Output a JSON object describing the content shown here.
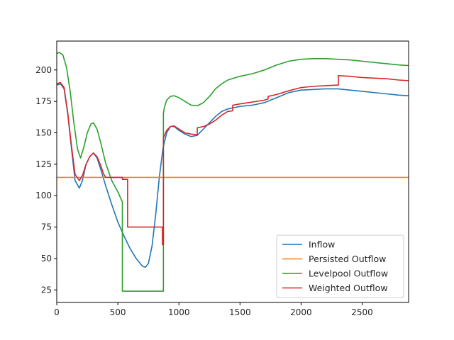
{
  "chart_data": {
    "type": "line",
    "title": "",
    "xlabel": "",
    "ylabel": "",
    "xlim": [
      0,
      2880
    ],
    "ylim": [
      15,
      223
    ],
    "xticks": [
      0,
      500,
      1000,
      1500,
      2000,
      2500
    ],
    "yticks": [
      25,
      50,
      75,
      100,
      125,
      150,
      175,
      200
    ],
    "grid": false,
    "legend_position": "lower-right",
    "series": [
      {
        "name": "Inflow",
        "color": "#1f77b4",
        "x": [
          0,
          30,
          60,
          90,
          120,
          150,
          185,
          210,
          240,
          270,
          300,
          330,
          360,
          400,
          450,
          500,
          550,
          600,
          650,
          700,
          725,
          750,
          780,
          810,
          840,
          870,
          900,
          930,
          960,
          1000,
          1050,
          1100,
          1150,
          1200,
          1250,
          1300,
          1350,
          1400,
          1500,
          1600,
          1700,
          1800,
          1900,
          2000,
          2100,
          2200,
          2300,
          2400,
          2500,
          2600,
          2700,
          2800,
          2880
        ],
        "y": [
          188,
          189,
          185,
          165,
          138,
          112,
          106,
          112,
          125,
          131,
          134,
          130,
          121,
          108,
          93,
          79,
          68,
          58,
          50,
          44,
          43,
          46,
          60,
          85,
          115,
          138,
          150,
          155,
          155,
          152,
          149,
          147,
          148,
          153,
          158,
          163,
          167,
          169,
          171,
          172,
          174,
          178,
          182,
          184,
          184.5,
          185,
          185,
          184,
          183,
          182,
          181,
          180,
          179.5
        ]
      },
      {
        "name": "Persisted Outflow",
        "color": "#ff7f0e",
        "x": [
          0,
          2880
        ],
        "y": [
          114.5,
          114.5
        ]
      },
      {
        "name": "Levelpool Outflow",
        "color": "#2ca02c",
        "x": [
          0,
          20,
          50,
          80,
          110,
          140,
          170,
          195,
          220,
          250,
          280,
          300,
          330,
          360,
          400,
          450,
          500,
          537,
          537,
          873,
          873,
          880,
          900,
          930,
          960,
          1000,
          1050,
          1100,
          1150,
          1200,
          1250,
          1300,
          1350,
          1400,
          1500,
          1600,
          1700,
          1800,
          1900,
          2000,
          2100,
          2200,
          2300,
          2400,
          2500,
          2600,
          2700,
          2800,
          2880
        ],
        "y": [
          213,
          214,
          212,
          202,
          183,
          158,
          137,
          130,
          138,
          150,
          157,
          158,
          153,
          142,
          126,
          112,
          103,
          95,
          24,
          24,
          165,
          170,
          176,
          179,
          179.5,
          178,
          175,
          172,
          171.5,
          174,
          179,
          185,
          189,
          192,
          195,
          197,
          200,
          204,
          207,
          208.5,
          209,
          209,
          208.5,
          208,
          207,
          206,
          205,
          204,
          203.5
        ]
      },
      {
        "name": "Weighted Outflow",
        "color": "#d62728",
        "x": [
          0,
          30,
          60,
          90,
          120,
          150,
          185,
          210,
          240,
          270,
          300,
          330,
          360,
          380,
          400,
          450,
          500,
          537,
          537,
          580,
          580,
          865,
          865,
          873,
          873,
          900,
          930,
          960,
          1000,
          1050,
          1100,
          1150,
          1150,
          1200,
          1250,
          1300,
          1350,
          1400,
          1440,
          1440,
          1500,
          1600,
          1700,
          1730,
          1730,
          1800,
          1900,
          2000,
          2100,
          2200,
          2305,
          2305,
          2400,
          2500,
          2600,
          2700,
          2800,
          2880
        ],
        "y": [
          189,
          190,
          186,
          166,
          140,
          117,
          112,
          116,
          125,
          131,
          134,
          131,
          124,
          118,
          114.5,
          114.5,
          114.5,
          114.5,
          113,
          113,
          75,
          75,
          61,
          61,
          146,
          152,
          155,
          155.5,
          153,
          150,
          149,
          148.5,
          154,
          155,
          157,
          160,
          164,
          167,
          167.5,
          172,
          173,
          174.5,
          176,
          177,
          179,
          180.5,
          183.5,
          186,
          187,
          187.5,
          188,
          195.5,
          195,
          194,
          193.5,
          193,
          192,
          191.5
        ]
      }
    ]
  }
}
